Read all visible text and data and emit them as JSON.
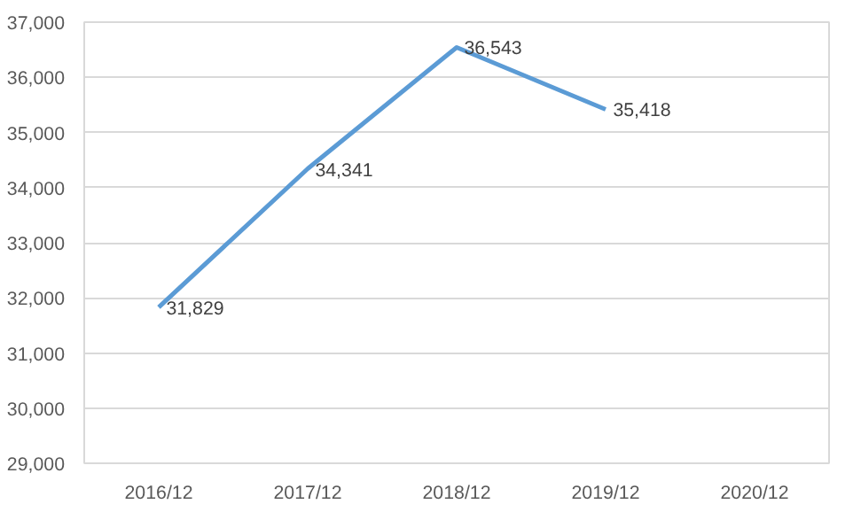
{
  "chart_data": {
    "type": "line",
    "categories": [
      "2016/12",
      "2017/12",
      "2018/12",
      "2019/12",
      "2020/12"
    ],
    "series": [
      {
        "color": "#5b9bd5",
        "values": [
          31829,
          34341,
          36543,
          35418,
          null
        ],
        "value_labels": [
          "31,829",
          "34,341",
          "36,543",
          "35,418",
          null
        ]
      }
    ],
    "ylim": [
      29000,
      37000
    ],
    "yticks": [
      {
        "value": 29000,
        "label": "29,000"
      },
      {
        "value": 30000,
        "label": "30,000"
      },
      {
        "value": 31000,
        "label": "31,000"
      },
      {
        "value": 32000,
        "label": "32,000"
      },
      {
        "value": 33000,
        "label": "33,000"
      },
      {
        "value": 34000,
        "label": "34,000"
      },
      {
        "value": 35000,
        "label": "35,000"
      },
      {
        "value": 36000,
        "label": "36,000"
      },
      {
        "value": 37000,
        "label": "37,000"
      }
    ],
    "grid": "y",
    "marker": "none",
    "line_style": "solid",
    "legend": false
  }
}
